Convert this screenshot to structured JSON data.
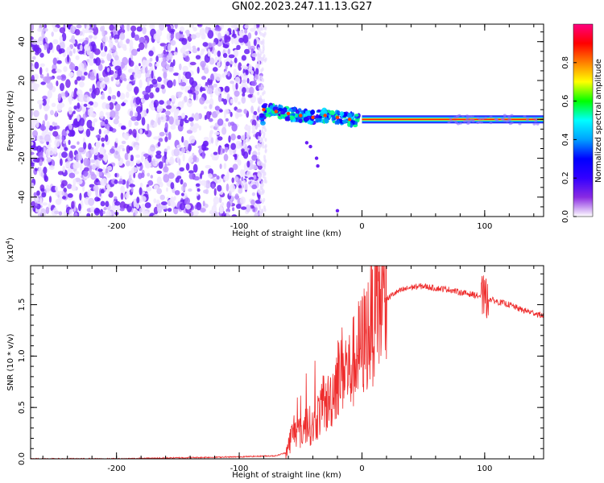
{
  "title": "GN02.2023.247.11.13.G27",
  "chart_data": [
    {
      "type": "heatmap",
      "name": "spectrogram",
      "xlabel": "Height of straight line (km)",
      "ylabel": "Frequency (Hz)",
      "xlim": [
        -270,
        148
      ],
      "ylim": [
        -50,
        49
      ],
      "xticks": [
        -200,
        -100,
        0,
        100
      ],
      "yticks": [
        -40,
        -20,
        0,
        20,
        40
      ],
      "xtick_labels": [
        "-200",
        "-100",
        "0",
        "100"
      ],
      "ytick_labels": [
        "-40",
        "-20",
        "0",
        "20",
        "40"
      ],
      "noise_region_x": [
        -270,
        -82
      ],
      "signal_track": [
        {
          "x": -80,
          "y": 5
        },
        {
          "x": -70,
          "y": 4
        },
        {
          "x": -60,
          "y": 3
        },
        {
          "x": -50,
          "y": 2
        },
        {
          "x": -40,
          "y": 1
        },
        {
          "x": -30,
          "y": 2
        },
        {
          "x": -20,
          "y": 1
        },
        {
          "x": -10,
          "y": 0
        },
        {
          "x": 0,
          "y": 0
        },
        {
          "x": 50,
          "y": 0
        },
        {
          "x": 100,
          "y": 0
        },
        {
          "x": 148,
          "y": 0
        }
      ],
      "stray_points": [
        {
          "x": -45,
          "y": -12
        },
        {
          "x": -42,
          "y": -14
        },
        {
          "x": -37,
          "y": -20
        },
        {
          "x": -36,
          "y": -24
        },
        {
          "x": -20,
          "y": -47
        }
      ],
      "colorbar": {
        "label": "Normalized spectral amplitude",
        "range": [
          0.0,
          1.0
        ],
        "ticks": [
          0.0,
          0.2,
          0.4,
          0.6,
          0.8
        ],
        "tick_labels": [
          "0.0",
          "0.2",
          "0.4",
          "0.6",
          "0.8"
        ],
        "colors": [
          "#ffffff",
          "#8a2be2",
          "#3300ff",
          "#0000ff",
          "#00a0ff",
          "#00ffff",
          "#00ff00",
          "#ffff00",
          "#ff8000",
          "#ff0000",
          "#ff0080"
        ]
      }
    },
    {
      "type": "line",
      "name": "snr",
      "xlabel": "Height of straight line (km)",
      "ylabel": "SNR (10 * v/v)",
      "y_scale_label": "(x10^4)",
      "xlim": [
        -270,
        148
      ],
      "ylim": [
        0,
        1.88
      ],
      "xticks": [
        -200,
        -100,
        0,
        100
      ],
      "yticks": [
        0.0,
        0.5,
        1.0,
        1.5
      ],
      "xtick_labels": [
        "-200",
        "-100",
        "0",
        "100"
      ],
      "ytick_labels": [
        "0.0",
        "0.5",
        "1.0",
        "1.5"
      ],
      "color": "#ee2c2c",
      "series": [
        {
          "name": "SNR",
          "x": [
            -270,
            -200,
            -150,
            -100,
            -70,
            -62,
            -58,
            -55,
            -50,
            -45,
            -40,
            -35,
            -30,
            -25,
            -20,
            -15,
            -10,
            -5,
            0,
            5,
            10,
            15,
            20,
            25,
            30,
            40,
            50,
            60,
            70,
            80,
            90,
            100,
            110,
            120,
            130,
            140,
            148
          ],
          "y": [
            0.0,
            0.0,
            0.01,
            0.02,
            0.03,
            0.06,
            0.2,
            0.3,
            0.25,
            0.35,
            0.3,
            0.45,
            0.5,
            0.6,
            0.8,
            0.9,
            0.85,
            1.0,
            1.1,
            1.25,
            1.4,
            1.5,
            1.55,
            1.6,
            1.63,
            1.67,
            1.68,
            1.66,
            1.65,
            1.62,
            1.6,
            1.57,
            1.53,
            1.5,
            1.45,
            1.42,
            1.39
          ]
        }
      ]
    }
  ]
}
